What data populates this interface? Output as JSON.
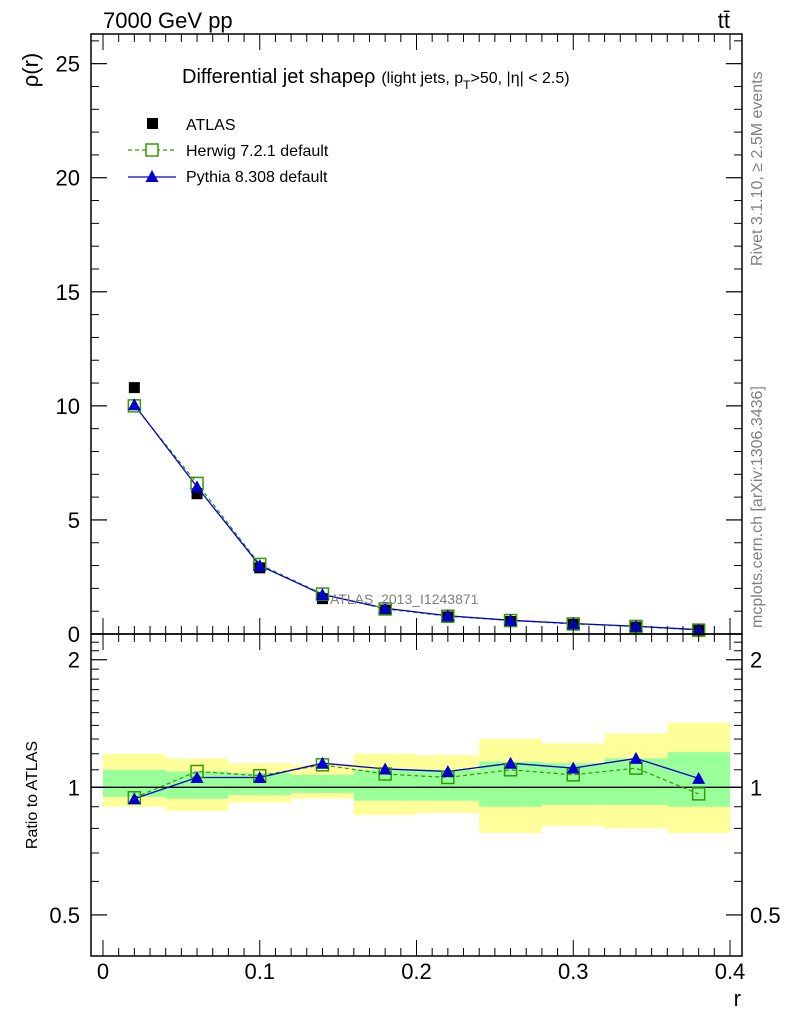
{
  "header": {
    "energy_label": "7000 GeV pp",
    "process_label": "tt̄"
  },
  "side_labels": {
    "rivet": "Rivet 3.1.10, ≥ 2.5M events",
    "source": "mcplots.cern.ch [arXiv:1306.3436]"
  },
  "watermark": "ATLAS_2013_I1243871",
  "chart_data": [
    {
      "type": "scatter",
      "title_main": "Differential jet shapeρ",
      "title_sub": {
        "a": "(light jets, p",
        "sub": "T",
        "b": ">50, |η| < 2.5)"
      },
      "xlabel": "r",
      "ylabel": "ρ(r)",
      "xlim": [
        0,
        0.4
      ],
      "ylim": [
        0,
        26.3
      ],
      "yticks": [
        0,
        5,
        10,
        15,
        20,
        25
      ],
      "yticklabels": [
        "0",
        "5",
        "10",
        "15",
        "20",
        "25"
      ],
      "legend": {
        "position": "top-left"
      },
      "x": [
        0.02,
        0.06,
        0.1,
        0.14,
        0.18,
        0.22,
        0.26,
        0.3,
        0.34,
        0.38
      ],
      "series": [
        {
          "name": "ATLAS",
          "marker": "filled-square",
          "color": "#000000",
          "values": [
            10.8,
            6.15,
            2.9,
            1.55,
            1.05,
            0.75,
            0.55,
            0.42,
            0.3,
            0.18
          ]
        },
        {
          "name": "Herwig 7.2.1 default",
          "marker": "open-square",
          "line": "dashed",
          "color": "#339900",
          "values": [
            10.0,
            6.6,
            3.05,
            1.75,
            1.1,
            0.78,
            0.59,
            0.44,
            0.33,
            0.17
          ]
        },
        {
          "name": "Pythia 8.308 default",
          "marker": "filled-triangle",
          "line": "solid",
          "color": "#0000cc",
          "values": [
            10.05,
            6.45,
            3.0,
            1.73,
            1.13,
            0.8,
            0.6,
            0.46,
            0.34,
            0.19
          ]
        }
      ]
    },
    {
      "type": "line",
      "ylabel": "Ratio to ATLAS",
      "xlabel": "r",
      "xlim": [
        0,
        0.4
      ],
      "ylim": [
        0.4,
        2.3
      ],
      "yscale": "log",
      "yticks": [
        0.5,
        1,
        2
      ],
      "yticklabels": [
        "0.5",
        "1",
        "2"
      ],
      "xticks": [
        0,
        0.1,
        0.2,
        0.3,
        0.4
      ],
      "xticklabels": [
        "0",
        "0.1",
        "0.2",
        "0.3",
        "0.4"
      ],
      "bins": [
        [
          0.0,
          0.04
        ],
        [
          0.04,
          0.08
        ],
        [
          0.08,
          0.12
        ],
        [
          0.12,
          0.16
        ],
        [
          0.16,
          0.2
        ],
        [
          0.2,
          0.24
        ],
        [
          0.24,
          0.28
        ],
        [
          0.28,
          0.32
        ],
        [
          0.32,
          0.36
        ],
        [
          0.36,
          0.4
        ]
      ],
      "band_outer": {
        "color": "#ffff99",
        "lo": [
          0.9,
          0.88,
          0.92,
          0.94,
          0.86,
          0.87,
          0.78,
          0.81,
          0.8,
          0.78
        ],
        "hi": [
          1.2,
          1.17,
          1.14,
          1.13,
          1.2,
          1.19,
          1.3,
          1.27,
          1.34,
          1.42
        ]
      },
      "band_inner": {
        "color": "#99ff99",
        "lo": [
          0.95,
          0.94,
          0.96,
          0.97,
          0.93,
          0.93,
          0.9,
          0.91,
          0.91,
          0.9
        ],
        "hi": [
          1.1,
          1.09,
          1.08,
          1.07,
          1.1,
          1.1,
          1.15,
          1.14,
          1.17,
          1.21
        ]
      },
      "x": [
        0.02,
        0.06,
        0.1,
        0.14,
        0.18,
        0.22,
        0.26,
        0.3,
        0.34,
        0.38
      ],
      "series": [
        {
          "name": "Herwig 7.2.1 default",
          "marker": "open-square",
          "line": "dashed",
          "color": "#339900",
          "values": [
            0.945,
            1.09,
            1.065,
            1.13,
            1.075,
            1.055,
            1.1,
            1.07,
            1.11,
            0.965
          ]
        },
        {
          "name": "Pythia 8.308 default",
          "marker": "filled-triangle",
          "line": "solid",
          "color": "#0000cc",
          "values": [
            0.94,
            1.055,
            1.055,
            1.14,
            1.105,
            1.09,
            1.14,
            1.11,
            1.17,
            1.05
          ]
        }
      ]
    }
  ]
}
